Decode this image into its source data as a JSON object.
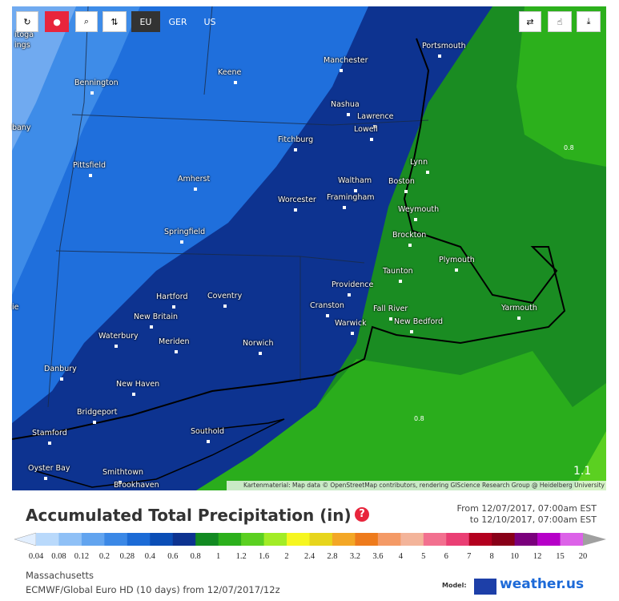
{
  "toolbar": {
    "regions": [
      "EU",
      "GER",
      "US"
    ]
  },
  "map": {
    "cities": [
      "Portsmouth",
      "Manchester",
      "Keene",
      "Bennington",
      "Nashua",
      "Lawrence",
      "Lowell",
      "Fitchburg",
      "Pittsfield",
      "Lynn",
      "Amherst",
      "Waltham",
      "Boston",
      "Worcester",
      "Framingham",
      "Weymouth",
      "Springfield",
      "Brockton",
      "Plymouth",
      "Taunton",
      "Providence",
      "Hartford",
      "Coventry",
      "Cranston",
      "Fall River",
      "Yarmouth",
      "New Britain",
      "Warwick",
      "New Bedford",
      "Waterbury",
      "Meriden",
      "Norwich",
      "Danbury",
      "New Haven",
      "Bridgeport",
      "Southold",
      "Stamford",
      "Oyster Bay",
      "Smithtown",
      "Brookhaven",
      "itoga",
      "ings",
      "bany",
      "ie"
    ],
    "contour_labels": [
      "0.8",
      "0.8",
      "1.1"
    ],
    "attribution": "Kartenmaterial: Map data © OpenStreetMap contributors, rendering GIScience Research Group @ Heidelberg University"
  },
  "header": {
    "title": "Accumulated Total Precipitation (in)",
    "help": "?",
    "from": "From 12/07/2017, 07:00am EST",
    "to": "to 12/10/2017, 07:00am EST"
  },
  "legend": {
    "levels": [
      "0.04",
      "0.08",
      "0.12",
      "0.2",
      "0.28",
      "0.4",
      "0.6",
      "0.8",
      "1",
      "1.2",
      "1.6",
      "2",
      "2.4",
      "2.8",
      "3.2",
      "3.6",
      "4",
      "5",
      "6",
      "7",
      "8",
      "10",
      "12",
      "15",
      "20"
    ],
    "colors": [
      "#e2efff",
      "#b9d9fb",
      "#8fc0f6",
      "#62a4ef",
      "#3b88e6",
      "#1c6bd6",
      "#0b4eb6",
      "#0d3390",
      "#128a22",
      "#2cb01c",
      "#5bd021",
      "#a2ec26",
      "#f6f620",
      "#e7d51c",
      "#f3a726",
      "#ee7b1c",
      "#f49a66",
      "#f3b49a",
      "#f2708f",
      "#ea3f74",
      "#b3001f",
      "#880018",
      "#7a007c",
      "#b600c8",
      "#dc62e8",
      "#f0a8f3",
      "#f9d8fb",
      "#d0d0d0",
      "#a0a0a0"
    ]
  },
  "footer": {
    "region": "Massachusetts",
    "model_run": "ECMWF/Global Euro HD (10 days) from 12/07/2017/12z",
    "model_label": "Model:",
    "brand": "weather.us"
  }
}
